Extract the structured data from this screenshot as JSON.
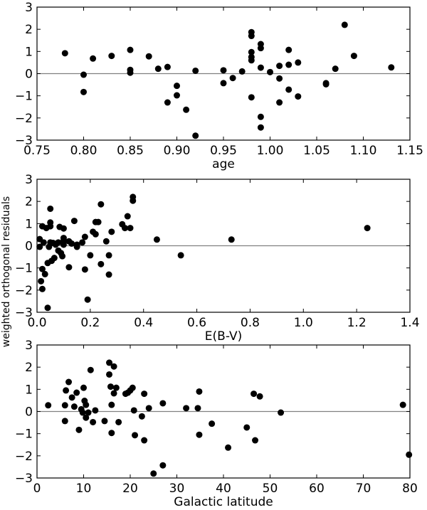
{
  "figure": {
    "shared_ylabel": "weighted orthogonal residuals"
  },
  "chart_data": [
    {
      "type": "scatter",
      "xlabel": "age",
      "ylabel": "",
      "xlim": [
        0.75,
        1.15
      ],
      "ylim": [
        -3,
        3
      ],
      "xticks": [
        "0.75",
        "0.80",
        "0.85",
        "0.90",
        "0.95",
        "1.00",
        "1.05",
        "1.10",
        "1.15"
      ],
      "yticks": [
        "3",
        "2",
        "1",
        "0",
        "−1",
        "−2",
        "−3"
      ],
      "reference_line": 0,
      "grid": false,
      "points": [
        [
          0.78,
          0.92
        ],
        [
          0.8,
          -0.05
        ],
        [
          0.8,
          -0.83
        ],
        [
          0.81,
          0.68
        ],
        [
          0.83,
          0.8
        ],
        [
          0.85,
          1.07
        ],
        [
          0.85,
          0.17
        ],
        [
          0.85,
          0.04
        ],
        [
          0.87,
          0.78
        ],
        [
          0.88,
          0.22
        ],
        [
          0.89,
          0.3
        ],
        [
          0.89,
          -1.3
        ],
        [
          0.9,
          -0.55
        ],
        [
          0.9,
          -0.98
        ],
        [
          0.91,
          -1.63
        ],
        [
          0.92,
          0.13
        ],
        [
          0.92,
          -2.8
        ],
        [
          0.95,
          0.15
        ],
        [
          0.95,
          -0.43
        ],
        [
          0.96,
          -0.2
        ],
        [
          0.97,
          0.1
        ],
        [
          0.98,
          1.87
        ],
        [
          0.98,
          1.7
        ],
        [
          0.98,
          0.97
        ],
        [
          0.98,
          0.75
        ],
        [
          0.98,
          0.6
        ],
        [
          0.98,
          -1.07
        ],
        [
          0.99,
          1.33
        ],
        [
          0.99,
          1.15
        ],
        [
          0.99,
          0.27
        ],
        [
          0.99,
          -1.95
        ],
        [
          0.99,
          -2.43
        ],
        [
          1.0,
          0.07
        ],
        [
          1.01,
          0.35
        ],
        [
          1.01,
          -0.22
        ],
        [
          1.01,
          -1.3
        ],
        [
          1.02,
          1.07
        ],
        [
          1.02,
          0.4
        ],
        [
          1.02,
          -0.72
        ],
        [
          1.03,
          0.5
        ],
        [
          1.03,
          -1.03
        ],
        [
          1.06,
          -0.43
        ],
        [
          1.06,
          -0.48
        ],
        [
          1.07,
          0.22
        ],
        [
          1.08,
          2.2
        ],
        [
          1.09,
          0.8
        ],
        [
          1.13,
          0.28
        ]
      ]
    },
    {
      "type": "scatter",
      "xlabel": "E(B-V)",
      "ylabel": "",
      "xlim": [
        0,
        1.4
      ],
      "ylim": [
        -3,
        3
      ],
      "xticks": [
        "0.0",
        "0.2",
        "0.4",
        "0.6",
        "0.8",
        "1.0",
        "1.2",
        "1.4"
      ],
      "yticks": [
        "3",
        "2",
        "1",
        "0",
        "−1",
        "−2",
        "−3"
      ],
      "reference_line": 0,
      "grid": false,
      "points": [
        [
          0.01,
          0.3
        ],
        [
          0.01,
          -0.05
        ],
        [
          0.015,
          -1.6
        ],
        [
          0.02,
          -1.05
        ],
        [
          0.02,
          -1.95
        ],
        [
          0.02,
          0.88
        ],
        [
          0.025,
          0.15
        ],
        [
          0.03,
          -1.28
        ],
        [
          0.035,
          0.8
        ],
        [
          0.04,
          -2.8
        ],
        [
          0.04,
          -0.78
        ],
        [
          0.045,
          -0.05
        ],
        [
          0.05,
          1.05
        ],
        [
          0.05,
          1.67
        ],
        [
          0.05,
          0.88
        ],
        [
          0.05,
          0.15
        ],
        [
          0.055,
          -0.68
        ],
        [
          0.06,
          0.13
        ],
        [
          0.065,
          -0.55
        ],
        [
          0.07,
          0.05
        ],
        [
          0.08,
          0.15
        ],
        [
          0.08,
          -0.22
        ],
        [
          0.085,
          0.85
        ],
        [
          0.09,
          -0.33
        ],
        [
          0.095,
          -0.47
        ],
        [
          0.1,
          0.78
        ],
        [
          0.1,
          0.35
        ],
        [
          0.1,
          0.22
        ],
        [
          0.1,
          0.05
        ],
        [
          0.12,
          0.2
        ],
        [
          0.12,
          -0.97
        ],
        [
          0.13,
          0.1
        ],
        [
          0.14,
          1.12
        ],
        [
          0.15,
          -0.05
        ],
        [
          0.15,
          0.05
        ],
        [
          0.17,
          0.15
        ],
        [
          0.18,
          0.4
        ],
        [
          0.18,
          -1.07
        ],
        [
          0.19,
          -2.43
        ],
        [
          0.2,
          -0.43
        ],
        [
          0.21,
          0.63
        ],
        [
          0.22,
          0.52
        ],
        [
          0.22,
          1.07
        ],
        [
          0.23,
          1.07
        ],
        [
          0.24,
          1.87
        ],
        [
          0.24,
          -0.83
        ],
        [
          0.26,
          0.2
        ],
        [
          0.27,
          -1.3
        ],
        [
          0.27,
          -0.43
        ],
        [
          0.28,
          0.63
        ],
        [
          0.32,
          0.97
        ],
        [
          0.33,
          0.8
        ],
        [
          0.34,
          1.33
        ],
        [
          0.35,
          0.8
        ],
        [
          0.36,
          2.2
        ],
        [
          0.36,
          2.03
        ],
        [
          0.45,
          0.28
        ],
        [
          0.54,
          -0.43
        ],
        [
          0.73,
          0.28
        ],
        [
          1.24,
          0.8
        ]
      ]
    },
    {
      "type": "scatter",
      "xlabel": "Galactic latitude",
      "ylabel": "",
      "xlim": [
        0,
        80
      ],
      "ylim": [
        -3,
        3
      ],
      "xticks": [
        "0",
        "10",
        "20",
        "30",
        "40",
        "50",
        "60",
        "70",
        "80"
      ],
      "yticks": [
        "3",
        "2",
        "1",
        "0",
        "−1",
        "−2",
        "−3"
      ],
      "reference_line": 0,
      "grid": false,
      "points": [
        [
          2.4,
          0.28
        ],
        [
          6.0,
          0.28
        ],
        [
          6.0,
          -0.43
        ],
        [
          6.2,
          0.95
        ],
        [
          6.8,
          1.33
        ],
        [
          7.5,
          0.63
        ],
        [
          8.0,
          0.22
        ],
        [
          8.5,
          0.85
        ],
        [
          9.0,
          -0.83
        ],
        [
          9.5,
          0.1
        ],
        [
          9.8,
          -0.05
        ],
        [
          10.0,
          1.07
        ],
        [
          10.2,
          0.48
        ],
        [
          10.5,
          0.3
        ],
        [
          10.5,
          -0.28
        ],
        [
          11.0,
          -0.05
        ],
        [
          11.5,
          1.87
        ],
        [
          12.0,
          -0.48
        ],
        [
          12.5,
          0.05
        ],
        [
          14.5,
          -0.43
        ],
        [
          15.5,
          2.2
        ],
        [
          15.5,
          1.67
        ],
        [
          15.8,
          1.12
        ],
        [
          16.0,
          -0.97
        ],
        [
          16.0,
          0.3
        ],
        [
          16.5,
          2.03
        ],
        [
          16.5,
          0.82
        ],
        [
          17.0,
          1.07
        ],
        [
          17.5,
          -0.48
        ],
        [
          19.0,
          0.8
        ],
        [
          19.5,
          0.85
        ],
        [
          20.0,
          0.95
        ],
        [
          20.5,
          1.07
        ],
        [
          20.8,
          0.05
        ],
        [
          21.0,
          -1.07
        ],
        [
          22.5,
          -0.22
        ],
        [
          23.0,
          -1.3
        ],
        [
          23.0,
          0.8
        ],
        [
          24.0,
          0.15
        ],
        [
          25.0,
          -2.8
        ],
        [
          27.0,
          -2.43
        ],
        [
          27.0,
          0.37
        ],
        [
          32.0,
          0.15
        ],
        [
          34.5,
          0.15
        ],
        [
          34.8,
          0.9
        ],
        [
          34.8,
          -1.05
        ],
        [
          37.5,
          -0.55
        ],
        [
          41.0,
          -1.63
        ],
        [
          45.0,
          -0.72
        ],
        [
          46.5,
          0.8
        ],
        [
          46.8,
          -1.3
        ],
        [
          47.8,
          0.68
        ],
        [
          52.3,
          -0.05
        ],
        [
          78.5,
          0.3
        ],
        [
          79.8,
          -1.95
        ]
      ]
    }
  ]
}
